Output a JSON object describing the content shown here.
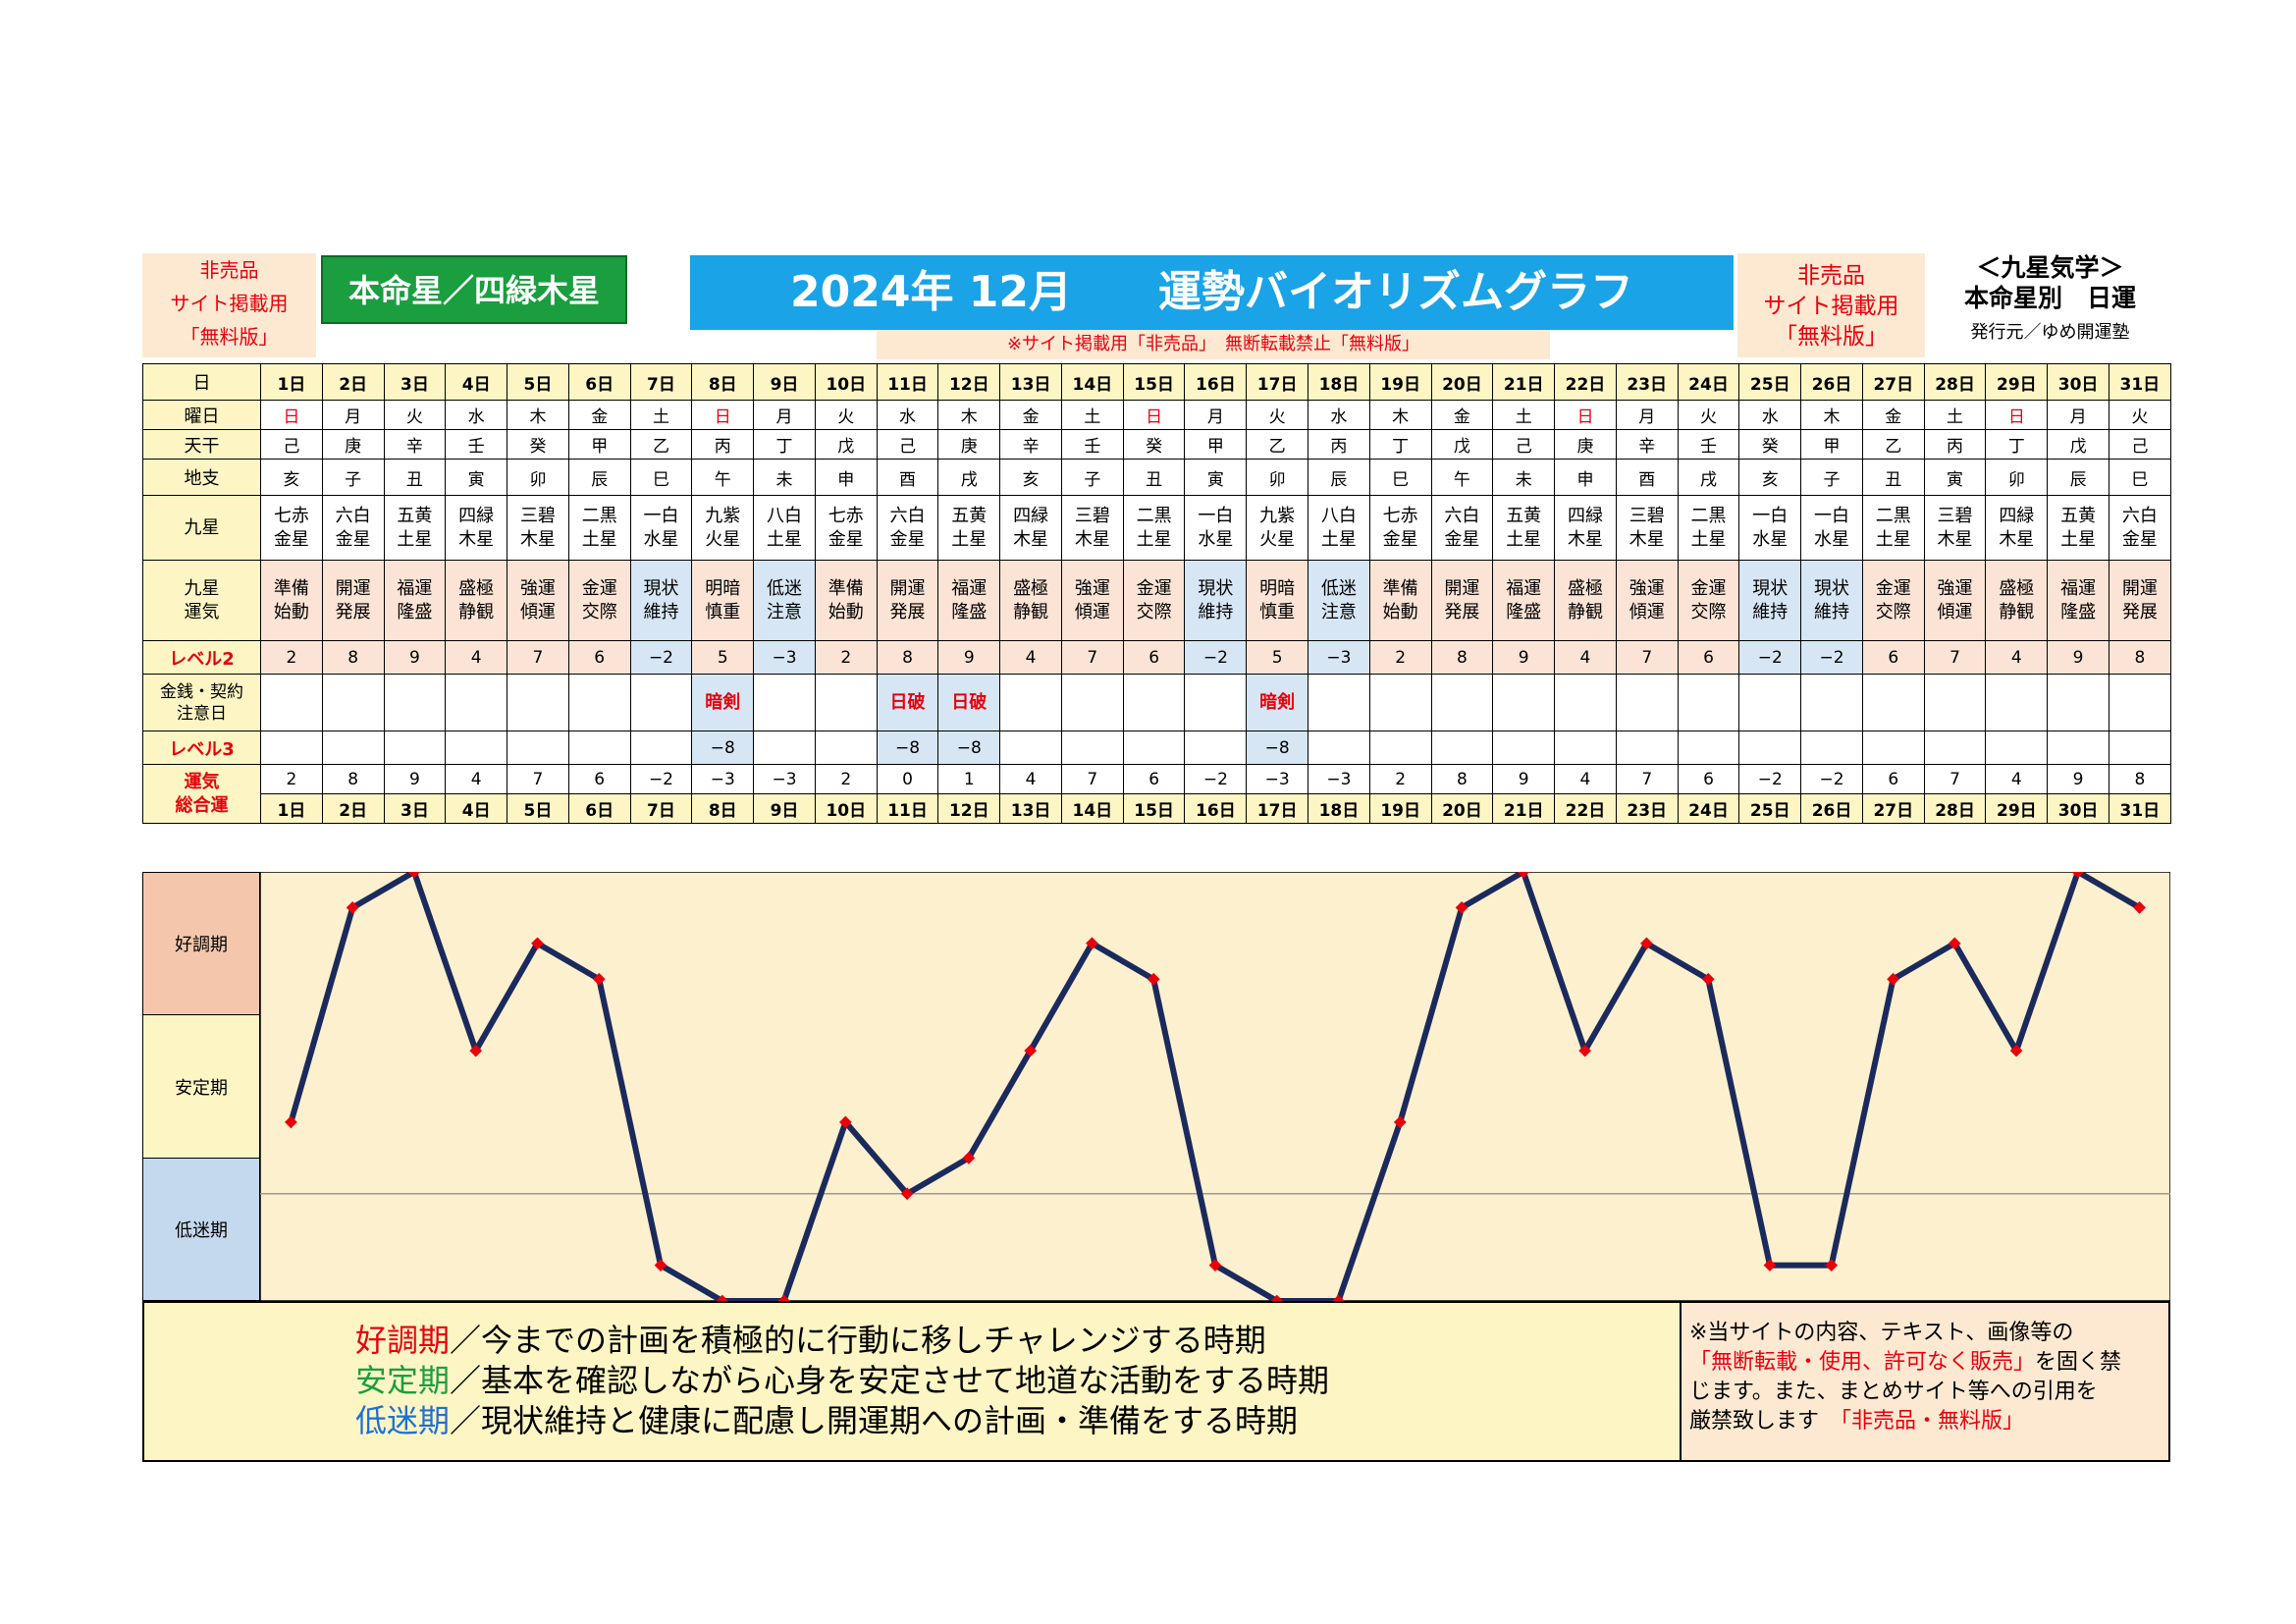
{
  "header": {
    "left_lines": [
      "非売品",
      "サイト掲載用",
      "「無料版」"
    ],
    "honmei": "本命星／四緑木星",
    "title": "2024年 12月　　運勢バイオリズムグラフ",
    "notice": "※サイト掲載用「非売品」　無断転載禁止「無料版」",
    "right_lines": [
      "非売品",
      "サイト掲載用",
      "「無料版」"
    ],
    "kyusei_title": "＜九星気学＞",
    "kyusei_sub": "本命星別　日運",
    "publisher": "発行元／ゆめ開運塾"
  },
  "rows": {
    "day_label": "日",
    "weekday_label": "曜日",
    "tenkan_label": "天干",
    "chishi_label": "地支",
    "kyusei_label": "九星",
    "unki_label": "九星\n運気",
    "level2_label": "レベル2",
    "money_label": "金銭・契約\n注意日",
    "level3_label": "レベル3",
    "total_label": "運気\n総合運"
  },
  "days": [
    "1日",
    "2日",
    "3日",
    "4日",
    "5日",
    "6日",
    "7日",
    "8日",
    "9日",
    "10日",
    "11日",
    "12日",
    "13日",
    "14日",
    "15日",
    "16日",
    "17日",
    "18日",
    "19日",
    "20日",
    "21日",
    "22日",
    "23日",
    "24日",
    "25日",
    "26日",
    "27日",
    "28日",
    "29日",
    "30日",
    "31日"
  ],
  "weekdays": [
    "日",
    "月",
    "火",
    "水",
    "木",
    "金",
    "土",
    "日",
    "月",
    "火",
    "水",
    "木",
    "金",
    "土",
    "日",
    "月",
    "火",
    "水",
    "木",
    "金",
    "土",
    "日",
    "月",
    "火",
    "水",
    "木",
    "金",
    "土",
    "日",
    "月",
    "火"
  ],
  "tenkan": [
    "己",
    "庚",
    "辛",
    "壬",
    "癸",
    "甲",
    "乙",
    "丙",
    "丁",
    "戊",
    "己",
    "庚",
    "辛",
    "壬",
    "癸",
    "甲",
    "乙",
    "丙",
    "丁",
    "戊",
    "己",
    "庚",
    "辛",
    "壬",
    "癸",
    "甲",
    "乙",
    "丙",
    "丁",
    "戊",
    "己"
  ],
  "chishi": [
    "亥",
    "子",
    "丑",
    "寅",
    "卯",
    "辰",
    "巳",
    "午",
    "未",
    "申",
    "酉",
    "戌",
    "亥",
    "子",
    "丑",
    "寅",
    "卯",
    "辰",
    "巳",
    "午",
    "未",
    "申",
    "酉",
    "戌",
    "亥",
    "子",
    "丑",
    "寅",
    "卯",
    "辰",
    "巳"
  ],
  "kyusei": [
    "七赤\n金星",
    "六白\n金星",
    "五黄\n土星",
    "四緑\n木星",
    "三碧\n木星",
    "二黒\n土星",
    "一白\n水星",
    "九紫\n火星",
    "八白\n土星",
    "七赤\n金星",
    "六白\n金星",
    "五黄\n土星",
    "四緑\n木星",
    "三碧\n木星",
    "二黒\n土星",
    "一白\n水星",
    "九紫\n火星",
    "八白\n土星",
    "七赤\n金星",
    "六白\n金星",
    "五黄\n土星",
    "四緑\n木星",
    "三碧\n木星",
    "二黒\n土星",
    "一白\n水星",
    "一白\n水星",
    "二黒\n土星",
    "三碧\n木星",
    "四緑\n木星",
    "五黄\n土星",
    "六白\n金星"
  ],
  "unki": [
    "準備\n始動",
    "開運\n発展",
    "福運\n隆盛",
    "盛極\n静観",
    "強運\n傾運",
    "金運\n交際",
    "現状\n維持",
    "明暗\n慎重",
    "低迷\n注意",
    "準備\n始動",
    "開運\n発展",
    "福運\n隆盛",
    "盛極\n静観",
    "強運\n傾運",
    "金運\n交際",
    "現状\n維持",
    "明暗\n慎重",
    "低迷\n注意",
    "準備\n始動",
    "開運\n発展",
    "福運\n隆盛",
    "盛極\n静観",
    "強運\n傾運",
    "金運\n交際",
    "現状\n維持",
    "現状\n維持",
    "金運\n交際",
    "強運\n傾運",
    "盛極\n静観",
    "福運\n隆盛",
    "開運\n発展"
  ],
  "level2": [
    "2",
    "8",
    "9",
    "4",
    "7",
    "6",
    "−2",
    "5",
    "−3",
    "2",
    "8",
    "9",
    "4",
    "7",
    "6",
    "−2",
    "5",
    "−3",
    "2",
    "8",
    "9",
    "4",
    "7",
    "6",
    "−2",
    "−2",
    "6",
    "7",
    "4",
    "9",
    "8"
  ],
  "money": [
    "",
    "",
    "",
    "",
    "",
    "",
    "",
    "暗剣",
    "",
    "",
    "日破",
    "日破",
    "",
    "",
    "",
    "",
    "暗剣",
    "",
    "",
    "",
    "",
    "",
    "",
    "",
    "",
    "",
    "",
    "",
    "",
    "",
    ""
  ],
  "level3": [
    "",
    "",
    "",
    "",
    "",
    "",
    "",
    "−8",
    "",
    "",
    "−8",
    "−8",
    "",
    "",
    "",
    "",
    "−8",
    "",
    "",
    "",
    "",
    "",
    "",
    "",
    "",
    "",
    "",
    "",
    "",
    "",
    ""
  ],
  "total": [
    "2",
    "8",
    "9",
    "4",
    "7",
    "6",
    "−2",
    "−3",
    "−3",
    "2",
    "0",
    "1",
    "4",
    "7",
    "6",
    "−2",
    "−3",
    "−3",
    "2",
    "8",
    "9",
    "4",
    "7",
    "6",
    "−2",
    "−2",
    "6",
    "7",
    "4",
    "9",
    "8"
  ],
  "chart_data": {
    "type": "line",
    "categories": [
      "1日",
      "2日",
      "3日",
      "4日",
      "5日",
      "6日",
      "7日",
      "8日",
      "9日",
      "10日",
      "11日",
      "12日",
      "13日",
      "14日",
      "15日",
      "16日",
      "17日",
      "18日",
      "19日",
      "20日",
      "21日",
      "22日",
      "23日",
      "24日",
      "25日",
      "26日",
      "27日",
      "28日",
      "29日",
      "30日",
      "31日"
    ],
    "series": [
      {
        "values": [
          2,
          8,
          9,
          4,
          7,
          6,
          -2,
          -3,
          -3,
          2,
          0,
          1,
          4,
          7,
          6,
          -2,
          -3,
          -3,
          2,
          8,
          9,
          4,
          7,
          6,
          -2,
          -2,
          6,
          7,
          4,
          9,
          8
        ]
      }
    ],
    "ylim": [
      -3,
      9
    ],
    "bands": [
      "好調期",
      "安定期",
      "低迷期"
    ],
    "line_color": "#1b2a5c",
    "marker_color": "#e8000b",
    "plot_bg": "#fdf0cf",
    "xlabel": "",
    "ylabel": ""
  },
  "footer": {
    "k1": "好調期",
    "t1": "／今までの計画を積極的に行動に移しチャレンジする時期",
    "k2": "安定期",
    "t2": "／基本を確認しながら心身を安定させて地道な活動をする時期",
    "k3": "低迷期",
    "t3": "／現状維持と健康に配慮し開運期への計画・準備をする時期",
    "copy1": "※当サイトの内容、テキスト、画像等の",
    "copy2r": "「無断転載・使用、許可なく販売」",
    "copy2b": "を固く禁",
    "copy3": "じます。また、まとめサイト等への引用を",
    "copy4b": "厳禁致します",
    "copy4r": "「非売品・無料版」"
  }
}
